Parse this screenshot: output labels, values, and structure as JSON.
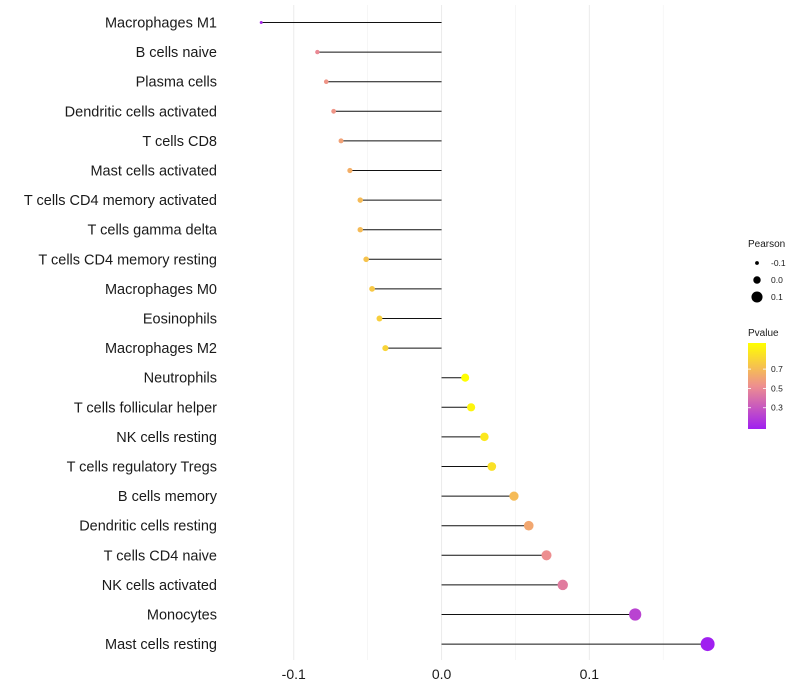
{
  "chart_data": {
    "type": "lollipop",
    "title": "",
    "xlabel": "",
    "ylabel": "",
    "xlim": [
      -0.135,
      0.185
    ],
    "x_ticks": [
      -0.1,
      0.0,
      0.1
    ],
    "x_tick_labels": [
      "-0.1",
      "0.0",
      "0.1"
    ],
    "grid": true,
    "categories": [
      "Macrophages M1",
      "B cells naive",
      "Plasma cells",
      "Dendritic cells activated",
      "T cells CD8",
      "Mast cells activated",
      "T cells CD4 memory activated",
      "T cells gamma delta",
      "T cells CD4 memory resting",
      "Macrophages M0",
      "Eosinophils",
      "Macrophages M2",
      "Neutrophils",
      "T cells follicular helper",
      "NK cells resting",
      "T cells regulatory  Tregs ",
      "B cells memory",
      "Dendritic cells resting",
      "T cells CD4 naive",
      "NK cells activated",
      "Monocytes",
      "Mast cells resting"
    ],
    "pearson": [
      -0.122,
      -0.084,
      -0.078,
      -0.073,
      -0.068,
      -0.062,
      -0.055,
      -0.055,
      -0.051,
      -0.047,
      -0.042,
      -0.038,
      0.016,
      0.02,
      0.029,
      0.034,
      0.049,
      0.059,
      0.071,
      0.082,
      0.131,
      0.18
    ],
    "pvalue": [
      0.12,
      0.5,
      0.55,
      0.55,
      0.6,
      0.65,
      0.7,
      0.7,
      0.73,
      0.75,
      0.78,
      0.8,
      0.97,
      0.93,
      0.88,
      0.85,
      0.7,
      0.62,
      0.52,
      0.45,
      0.22,
      0.08
    ],
    "legend": {
      "size_title": "Pearson",
      "size_labels": [
        "-0.1",
        "0.0",
        "0.1"
      ],
      "size_values": [
        -0.1,
        0.0,
        0.1
      ],
      "color_title": "Pvalue",
      "color_labels": [
        "0.7",
        "0.5",
        "0.3"
      ],
      "color_values": [
        0.7,
        0.5,
        0.3
      ],
      "color_range": [
        0.08,
        0.97
      ],
      "color_low": "#a020f0",
      "color_mid": "#ee8f8f",
      "color_high": "#ffff00",
      "placement": "right"
    }
  }
}
